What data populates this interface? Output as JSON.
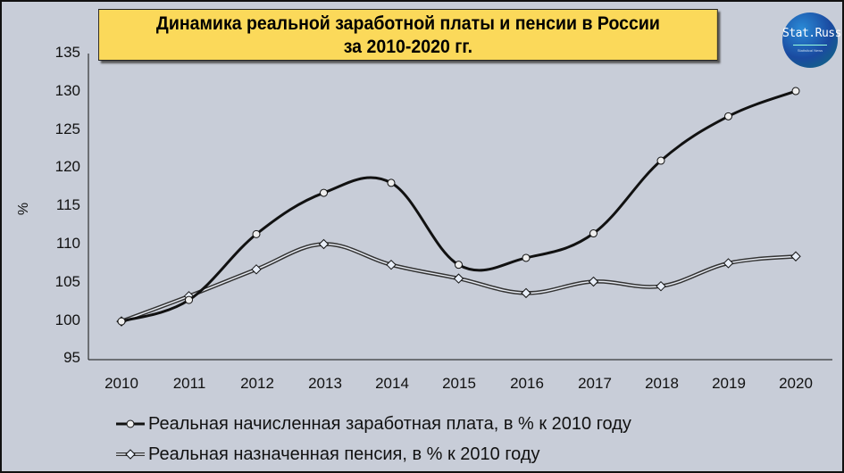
{
  "title": {
    "line1": "Динамика реальной заработной платы и пенсии в России",
    "line2": "за 2010-2020 гг."
  },
  "logo": {
    "text": "Stat.Russ",
    "subtext": "Statistical  News"
  },
  "colors": {
    "background": "#c8cdd8",
    "title_bg": "#fbd95a",
    "salary_line": "#111111",
    "pension_line": "#222222"
  },
  "y_ticks": [
    "135",
    "130",
    "125",
    "120",
    "115",
    "110",
    "105",
    "100",
    "95"
  ],
  "x_ticks": [
    "2010",
    "2011",
    "2012",
    "2013",
    "2014",
    "2015",
    "2016",
    "2017",
    "2018",
    "2019",
    "2020"
  ],
  "y_axis_title": "%",
  "legend": {
    "salary": "Реальная начисленная заработная плата, в % к 2010 году",
    "pension": "Реальная назначенная пенсия, в % к 2010 году"
  },
  "chart_data": {
    "type": "line",
    "title": "Динамика реальной заработной платы и пенсии в России за 2010-2020 гг.",
    "xlabel": "",
    "ylabel": "%",
    "ylim": [
      95,
      135
    ],
    "grid": false,
    "legend_position": "bottom",
    "x": [
      2010,
      2011,
      2012,
      2013,
      2014,
      2015,
      2016,
      2017,
      2018,
      2019,
      2020
    ],
    "series": [
      {
        "name": "Реальная начисленная заработная плата, в % к 2010 году",
        "marker": "circle",
        "values": [
          100.0,
          102.8,
          111.4,
          116.8,
          118.1,
          107.4,
          108.3,
          111.5,
          121.0,
          126.8,
          130.1
        ]
      },
      {
        "name": "Реальная назначенная пенсия, в % к 2010 году",
        "marker": "diamond",
        "values": [
          100.0,
          103.3,
          106.8,
          110.1,
          107.4,
          105.6,
          103.7,
          105.2,
          104.6,
          107.6,
          108.5
        ]
      }
    ]
  }
}
